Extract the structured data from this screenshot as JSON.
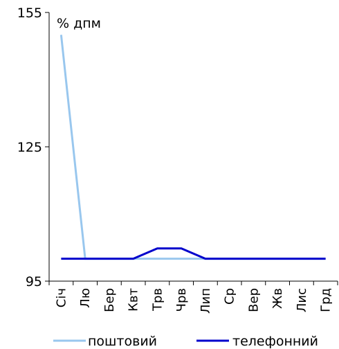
{
  "chart_data": {
    "type": "line",
    "title": "",
    "unit_label": "% дпм",
    "xlabel": "",
    "ylabel": "",
    "categories": [
      "Січ",
      "Лю",
      "Бер",
      "Квт",
      "Трв",
      "Чрв",
      "Лип",
      "Ср",
      "Вер",
      "Жв",
      "Лис",
      "Грд"
    ],
    "ylim": [
      95,
      155
    ],
    "yticks": [
      95,
      125,
      155
    ],
    "grid": false,
    "legend_position": "bottom",
    "series": [
      {
        "name": "поштовий",
        "color": "#99c7ee",
        "values": [
          150,
          100,
          100,
          100,
          100,
          100,
          100,
          100,
          100,
          100,
          100,
          100
        ]
      },
      {
        "name": "телефонний",
        "color": "#0000cc",
        "values": [
          100,
          100,
          100,
          100,
          102.3,
          102.3,
          100,
          100,
          100,
          100,
          100,
          100
        ]
      }
    ]
  }
}
